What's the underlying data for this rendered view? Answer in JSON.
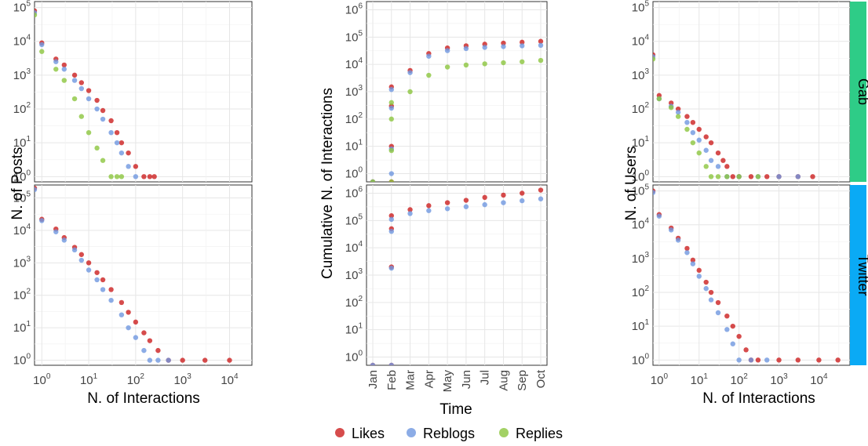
{
  "colors": {
    "likes": "#cc1f1f",
    "reblogs": "#6f97e0",
    "replies": "#8cc63f",
    "gab_strip": "#2ecc87",
    "twitter_strip": "#0aaaf5"
  },
  "labels": {
    "left_ylabel": "N. of Posts",
    "left_xlabel": "N. of Interactions",
    "mid_ylabel": "Cumulative N. of Interactions",
    "mid_xlabel": "Time",
    "right_ylabel": "N. of Users",
    "right_xlabel": "N. of Interactions",
    "strip_gab": "Gab",
    "strip_twitter": "Twitter"
  },
  "legend": {
    "items": [
      "Likes",
      "Reblogs",
      "Replies"
    ],
    "position": "bottom"
  },
  "chart_data": [
    {
      "id": "posts-gab",
      "type": "scatter",
      "log_x": true,
      "log_y": true,
      "xlim": [
        0.7,
        30000
      ],
      "ylim": [
        0.7,
        150000
      ],
      "grid": true,
      "series": [
        {
          "name": "Likes",
          "points": [
            [
              0.7,
              80000
            ],
            [
              1,
              9000
            ],
            [
              2,
              3000
            ],
            [
              3,
              2000
            ],
            [
              5,
              1000
            ],
            [
              7,
              600
            ],
            [
              10,
              350
            ],
            [
              15,
              180
            ],
            [
              20,
              90
            ],
            [
              30,
              45
            ],
            [
              40,
              20
            ],
            [
              50,
              10
            ],
            [
              70,
              5
            ],
            [
              100,
              2
            ],
            [
              150,
              1
            ],
            [
              200,
              1
            ],
            [
              250,
              1
            ]
          ]
        },
        {
          "name": "Reblogs",
          "points": [
            [
              0.7,
              70000
            ],
            [
              1,
              8000
            ],
            [
              2,
              2500
            ],
            [
              3,
              1500
            ],
            [
              5,
              700
            ],
            [
              7,
              400
            ],
            [
              10,
              200
            ],
            [
              15,
              100
            ],
            [
              20,
              50
            ],
            [
              30,
              20
            ],
            [
              40,
              10
            ],
            [
              50,
              5
            ],
            [
              70,
              2
            ],
            [
              100,
              1
            ]
          ]
        },
        {
          "name": "Replies",
          "points": [
            [
              0.7,
              60000
            ],
            [
              1,
              5000
            ],
            [
              2,
              1500
            ],
            [
              3,
              700
            ],
            [
              5,
              200
            ],
            [
              7,
              60
            ],
            [
              10,
              20
            ],
            [
              15,
              7
            ],
            [
              20,
              3
            ],
            [
              30,
              1
            ],
            [
              40,
              1
            ],
            [
              50,
              1
            ]
          ]
        }
      ]
    },
    {
      "id": "posts-twitter",
      "type": "scatter",
      "log_x": true,
      "log_y": true,
      "xlim": [
        0.7,
        30000
      ],
      "ylim": [
        0.7,
        250000
      ],
      "grid": true,
      "series": [
        {
          "name": "Likes",
          "points": [
            [
              0.7,
              200000
            ],
            [
              1,
              22000
            ],
            [
              2,
              11000
            ],
            [
              3,
              6000
            ],
            [
              5,
              3000
            ],
            [
              7,
              1800
            ],
            [
              10,
              1000
            ],
            [
              15,
              500
            ],
            [
              20,
              300
            ],
            [
              30,
              150
            ],
            [
              50,
              60
            ],
            [
              70,
              30
            ],
            [
              100,
              15
            ],
            [
              150,
              7
            ],
            [
              200,
              4
            ],
            [
              300,
              2
            ],
            [
              500,
              1
            ],
            [
              1000,
              1
            ],
            [
              3000,
              1
            ],
            [
              10000,
              1
            ]
          ]
        },
        {
          "name": "Reblogs",
          "points": [
            [
              0.7,
              180000
            ],
            [
              1,
              20000
            ],
            [
              2,
              9000
            ],
            [
              3,
              5000
            ],
            [
              5,
              2500
            ],
            [
              7,
              1200
            ],
            [
              10,
              600
            ],
            [
              15,
              300
            ],
            [
              20,
              150
            ],
            [
              30,
              70
            ],
            [
              50,
              25
            ],
            [
              70,
              10
            ],
            [
              100,
              5
            ],
            [
              150,
              2
            ],
            [
              200,
              1
            ],
            [
              300,
              1
            ],
            [
              500,
              1
            ]
          ]
        }
      ]
    },
    {
      "id": "cumulative-gab",
      "type": "scatter",
      "log_y": true,
      "x_categories": [
        "Jan",
        "Feb",
        "Mar",
        "Apr",
        "May",
        "Jun",
        "Jul",
        "Aug",
        "Sep",
        "Oct"
      ],
      "ylim": [
        0.5,
        2000000
      ],
      "grid": true,
      "series": [
        {
          "name": "Likes",
          "points": [
            [
              "Jan",
              0.5
            ],
            [
              "Feb",
              0.5
            ],
            [
              "Feb",
              10
            ],
            [
              "Feb",
              300
            ],
            [
              "Feb",
              1500
            ],
            [
              "Mar",
              6000
            ],
            [
              "Apr",
              25000
            ],
            [
              "May",
              40000
            ],
            [
              "Jun",
              48000
            ],
            [
              "Jul",
              55000
            ],
            [
              "Aug",
              60000
            ],
            [
              "Sep",
              65000
            ],
            [
              "Oct",
              70000
            ]
          ]
        },
        {
          "name": "Reblogs",
          "points": [
            [
              "Jan",
              0.5
            ],
            [
              "Feb",
              1
            ],
            [
              "Feb",
              8
            ],
            [
              "Feb",
              250
            ],
            [
              "Feb",
              1200
            ],
            [
              "Mar",
              5000
            ],
            [
              "Apr",
              20000
            ],
            [
              "May",
              32000
            ],
            [
              "Jun",
              38000
            ],
            [
              "Jul",
              42000
            ],
            [
              "Aug",
              45000
            ],
            [
              "Sep",
              48000
            ],
            [
              "Oct",
              50000
            ]
          ]
        },
        {
          "name": "Replies",
          "points": [
            [
              "Jan",
              0.5
            ],
            [
              "Feb",
              0.5
            ],
            [
              "Feb",
              7
            ],
            [
              "Feb",
              100
            ],
            [
              "Feb",
              400
            ],
            [
              "Mar",
              1000
            ],
            [
              "Apr",
              4000
            ],
            [
              "May",
              8000
            ],
            [
              "Jun",
              9500
            ],
            [
              "Jul",
              10500
            ],
            [
              "Aug",
              11500
            ],
            [
              "Sep",
              12500
            ],
            [
              "Oct",
              14000
            ]
          ]
        }
      ]
    },
    {
      "id": "cumulative-twitter",
      "type": "scatter",
      "log_y": true,
      "x_categories": [
        "Jan",
        "Feb",
        "Mar",
        "Apr",
        "May",
        "Jun",
        "Jul",
        "Aug",
        "Sep",
        "Oct"
      ],
      "ylim": [
        0.5,
        2000000
      ],
      "grid": true,
      "series": [
        {
          "name": "Likes",
          "points": [
            [
              "Jan",
              0.5
            ],
            [
              "Feb",
              0.5
            ],
            [
              "Feb",
              2000
            ],
            [
              "Feb",
              50000
            ],
            [
              "Feb",
              150000
            ],
            [
              "Mar",
              250000
            ],
            [
              "Apr",
              350000
            ],
            [
              "May",
              450000
            ],
            [
              "Jun",
              550000
            ],
            [
              "Jul",
              700000
            ],
            [
              "Aug",
              850000
            ],
            [
              "Sep",
              1000000
            ],
            [
              "Oct",
              1300000
            ]
          ]
        },
        {
          "name": "Reblogs",
          "points": [
            [
              "Jan",
              0.5
            ],
            [
              "Feb",
              0.5
            ],
            [
              "Feb",
              1800
            ],
            [
              "Feb",
              40000
            ],
            [
              "Feb",
              110000
            ],
            [
              "Mar",
              180000
            ],
            [
              "Apr",
              230000
            ],
            [
              "May",
              270000
            ],
            [
              "Jun",
              320000
            ],
            [
              "Jul",
              380000
            ],
            [
              "Aug",
              450000
            ],
            [
              "Sep",
              530000
            ],
            [
              "Oct",
              620000
            ]
          ]
        }
      ]
    },
    {
      "id": "users-gab",
      "type": "scatter",
      "log_x": true,
      "log_y": true,
      "xlim": [
        0.7,
        60000
      ],
      "ylim": [
        0.7,
        150000
      ],
      "grid": true,
      "series": [
        {
          "name": "Likes",
          "points": [
            [
              0.7,
              4000
            ],
            [
              1,
              250
            ],
            [
              2,
              150
            ],
            [
              3,
              100
            ],
            [
              5,
              60
            ],
            [
              7,
              40
            ],
            [
              10,
              25
            ],
            [
              15,
              15
            ],
            [
              20,
              10
            ],
            [
              30,
              5
            ],
            [
              40,
              3
            ],
            [
              50,
              2
            ],
            [
              70,
              1
            ],
            [
              100,
              1
            ],
            [
              200,
              1
            ],
            [
              500,
              1
            ],
            [
              1000,
              1
            ],
            [
              3000,
              1
            ],
            [
              7000,
              1
            ]
          ]
        },
        {
          "name": "Reblogs",
          "points": [
            [
              0.7,
              3500
            ],
            [
              1,
              200
            ],
            [
              2,
              120
            ],
            [
              3,
              80
            ],
            [
              5,
              40
            ],
            [
              7,
              20
            ],
            [
              10,
              12
            ],
            [
              15,
              6
            ],
            [
              20,
              3
            ],
            [
              30,
              2
            ],
            [
              50,
              1
            ],
            [
              100,
              1
            ],
            [
              300,
              1
            ],
            [
              1000,
              1
            ],
            [
              3000,
              1
            ]
          ]
        },
        {
          "name": "Replies",
          "points": [
            [
              0.7,
              3000
            ],
            [
              1,
              200
            ],
            [
              2,
              110
            ],
            [
              3,
              60
            ],
            [
              5,
              25
            ],
            [
              7,
              10
            ],
            [
              10,
              5
            ],
            [
              15,
              2
            ],
            [
              20,
              1
            ],
            [
              30,
              1
            ],
            [
              50,
              1
            ],
            [
              100,
              1
            ],
            [
              300,
              1
            ]
          ]
        }
      ]
    },
    {
      "id": "users-twitter",
      "type": "scatter",
      "log_x": true,
      "log_y": true,
      "xlim": [
        0.7,
        60000
      ],
      "ylim": [
        0.7,
        150000
      ],
      "grid": true,
      "series": [
        {
          "name": "Likes",
          "points": [
            [
              0.7,
              100000
            ],
            [
              1,
              20000
            ],
            [
              2,
              8000
            ],
            [
              3,
              4000
            ],
            [
              5,
              2000
            ],
            [
              7,
              900
            ],
            [
              10,
              450
            ],
            [
              15,
              200
            ],
            [
              20,
              100
            ],
            [
              30,
              50
            ],
            [
              50,
              20
            ],
            [
              70,
              10
            ],
            [
              100,
              5
            ],
            [
              150,
              2
            ],
            [
              200,
              1
            ],
            [
              300,
              1
            ],
            [
              1000,
              1
            ],
            [
              3000,
              1
            ],
            [
              10000,
              1
            ],
            [
              30000,
              1
            ]
          ]
        },
        {
          "name": "Reblogs",
          "points": [
            [
              0.7,
              90000
            ],
            [
              1,
              18000
            ],
            [
              2,
              7000
            ],
            [
              3,
              3500
            ],
            [
              5,
              1500
            ],
            [
              7,
              700
            ],
            [
              10,
              300
            ],
            [
              15,
              130
            ],
            [
              20,
              60
            ],
            [
              30,
              25
            ],
            [
              50,
              8
            ],
            [
              70,
              3
            ],
            [
              100,
              1
            ],
            [
              200,
              1
            ],
            [
              500,
              1
            ]
          ]
        }
      ]
    }
  ]
}
